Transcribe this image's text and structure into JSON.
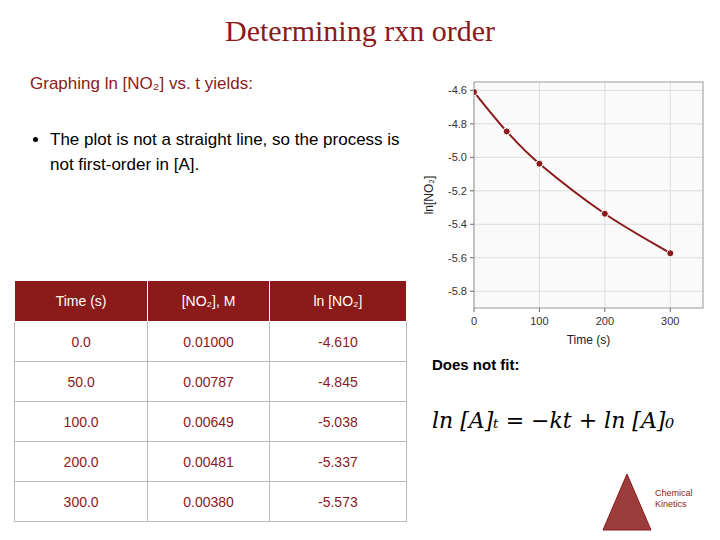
{
  "chart_data": {
    "type": "line",
    "title": "Determining rxn order",
    "x": [
      0,
      50,
      100,
      200,
      300
    ],
    "series": [
      {
        "values": [
          -4.61,
          -4.845,
          -5.038,
          -5.337,
          -5.573
        ],
        "color": "#8B1A1A",
        "marker": "circle",
        "line_style": "solid"
      }
    ],
    "x_label": "Time (s)",
    "y_label": "ln[NO₂]",
    "xlim": [
      0,
      350
    ],
    "ylim": [
      -5.9,
      -4.55
    ],
    "xticks": [
      0,
      100,
      200,
      300
    ],
    "yticks": [
      -5.8,
      -5.6,
      -5.4,
      -5.2,
      {
        "value": -5.0,
        "label": "-5.0"
      },
      -4.8,
      -4.6
    ],
    "grid": true,
    "annotations": [
      "Graphing ln [NO₂] vs. t yields:",
      "The plot is not a straight line, so the process is not first-order in [A].",
      "Does not fit:",
      "ln [A]ₜ = −kt + ln [A]₀",
      "Chemical Kinetics"
    ],
    "table": {
      "columns": [
        "Time (s)",
        "[NO₂], M",
        "ln [NO₂]"
      ],
      "rows": [
        [
          "0.0",
          "0.01000",
          "-4.610"
        ],
        [
          "50.0",
          "0.00787",
          "-4.845"
        ],
        [
          "100.0",
          "0.00649",
          "-5.038"
        ],
        [
          "200.0",
          "0.00481",
          "-5.337"
        ],
        [
          "300.0",
          "0.00380",
          "-5.573"
        ]
      ]
    }
  }
}
